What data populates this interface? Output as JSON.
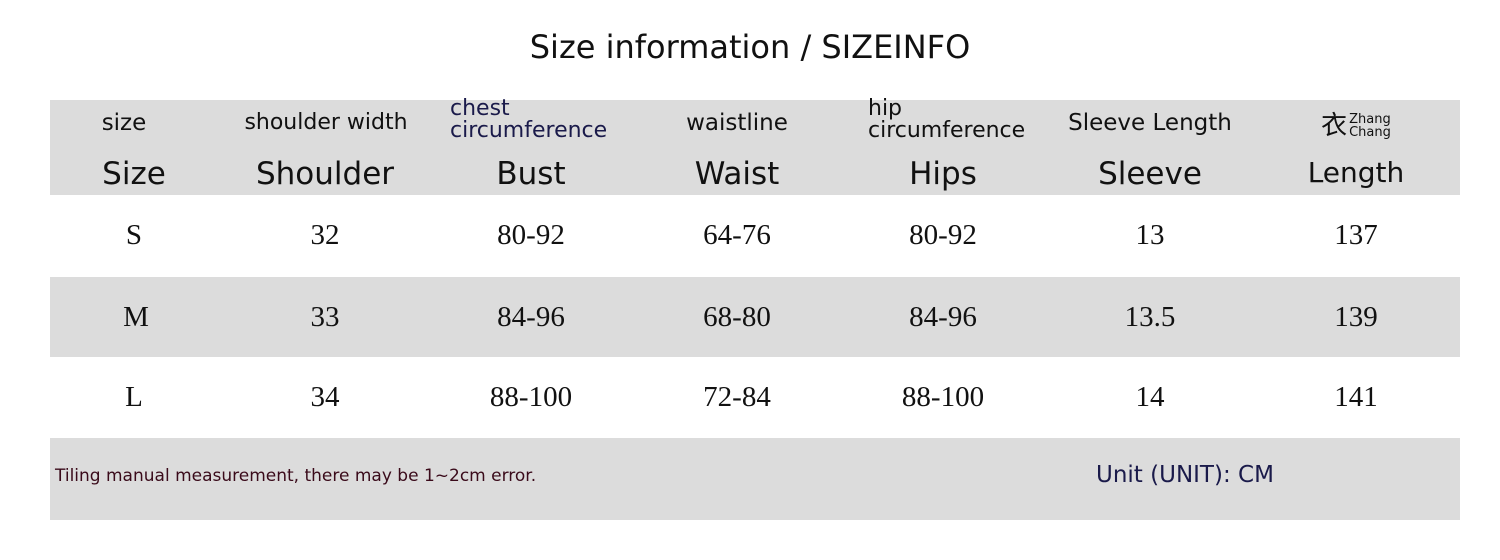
{
  "title": "Size information / SIZEINFO",
  "header": {
    "columns": [
      {
        "sub": "size",
        "main": "Size"
      },
      {
        "sub": "shoulder width",
        "main": "Shoulder"
      },
      {
        "sub_line1": "chest",
        "sub_line2": "circumference",
        "main": "Bust"
      },
      {
        "sub": "waistline",
        "main": "Waist"
      },
      {
        "sub_line1": "hip",
        "sub_line2": "circumference",
        "main": "Hips"
      },
      {
        "sub": "Sleeve Length",
        "main": "Sleeve"
      },
      {
        "logo_line1": "Zhang",
        "logo_line2": "Chang",
        "main": "Length"
      }
    ]
  },
  "rows": [
    [
      "S",
      "32",
      "80-92",
      "64-76",
      "80-92",
      "13",
      "137"
    ],
    [
      "M",
      "33",
      "84-96",
      "68-80",
      "84-96",
      "13.5",
      "139"
    ],
    [
      "L",
      "34",
      "88-100",
      "72-84",
      "88-100",
      "14",
      "141"
    ]
  ],
  "footer": {
    "note": "Tiling manual measurement, there may be 1~2cm error.",
    "unit": "Unit (UNIT): CM"
  },
  "colors": {
    "band_gray": "#dcdcdc",
    "note_text": "#3a0a1a",
    "unit_text": "#1a1a4a"
  }
}
